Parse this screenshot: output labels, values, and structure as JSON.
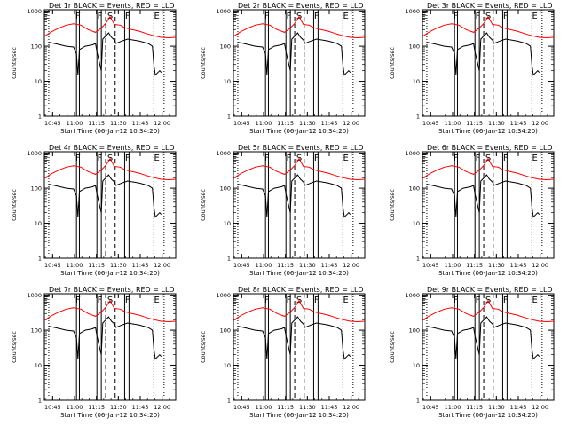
{
  "figure": {
    "panels": [
      {
        "title": "Det 1r  BLACK = Events, RED = LLD",
        "xlabel": "Start Time (06-Jan-12 10:34:20)",
        "ylabel": "Counts/sec"
      },
      {
        "title": "Det 2r  BLACK = Events, RED = LLD",
        "xlabel": "Start Time (06-Jan-12 10:34:20)",
        "ylabel": "Counts/sec"
      },
      {
        "title": "Det 3r  BLACK = Events, RED = LLD",
        "xlabel": "Start Time (06-Jan-12 10:34:20)",
        "ylabel": "Counts/sec"
      },
      {
        "title": "Det 4r  BLACK = Events, RED = LLD",
        "xlabel": "Start Time (06-Jan-12 10:34:20)",
        "ylabel": "Counts/sec"
      },
      {
        "title": "Det 5r  BLACK = Events, RED = LLD",
        "xlabel": "Start Time (06-Jan-12 10:34:20)",
        "ylabel": "Counts/sec"
      },
      {
        "title": "Det 6r  BLACK = Events, RED = LLD",
        "xlabel": "Start Time (06-Jan-12 10:34:20)",
        "ylabel": "Counts/sec"
      },
      {
        "title": "Det 7r  BLACK = Events, RED = LLD",
        "xlabel": "Start Time (06-Jan-12 10:34:20)",
        "ylabel": "Counts/sec"
      },
      {
        "title": "Det 8r  BLACK = Events, RED = LLD",
        "xlabel": "Start Time (06-Jan-12 10:34:20)",
        "ylabel": "Counts/sec"
      },
      {
        "title": "Det 9r  BLACK = Events, RED = LLD",
        "xlabel": "Start Time (06-Jan-12 10:34:20)",
        "ylabel": "Counts/sec"
      }
    ]
  },
  "chart_data": {
    "type": "line",
    "layout": "3x3 grid",
    "x_units": "minutes after 10:34:20",
    "xlim": [
      5,
      95
    ],
    "yscale": "log",
    "ylim": [
      1,
      1100
    ],
    "yticks": [
      1,
      10,
      100,
      1000
    ],
    "ytick_labels": [
      "1",
      "10",
      "100",
      "1000"
    ],
    "xticks": [
      10.67,
      25.67,
      40.67,
      55.67,
      70.67,
      85.67
    ],
    "xtick_labels": [
      "10:45",
      "11:00",
      "11:15",
      "11:30",
      "11:45",
      "12:00"
    ],
    "grid": false,
    "line_colors": {
      "events": "#000000",
      "lld": "#ff0000"
    },
    "annotations": [
      {
        "text": "E",
        "x": 6
      },
      {
        "text": "F",
        "x": 28
      },
      {
        "text": "F",
        "x": 43
      },
      {
        "text": "S",
        "x": 50
      },
      {
        "text": "F",
        "x": 62
      },
      {
        "text": "E",
        "x": 82
      }
    ],
    "vertical_lines": [
      {
        "x": 8,
        "style": "dotted"
      },
      {
        "x": 27,
        "style": "solid"
      },
      {
        "x": 29,
        "style": "solid"
      },
      {
        "x": 41,
        "style": "solid"
      },
      {
        "x": 44,
        "style": "solid"
      },
      {
        "x": 47,
        "style": "dashed"
      },
      {
        "x": 53.5,
        "style": "dashed"
      },
      {
        "x": 60,
        "style": "solid"
      },
      {
        "x": 63,
        "style": "solid"
      },
      {
        "x": 80,
        "style": "dotted"
      },
      {
        "x": 87,
        "style": "dotted"
      }
    ],
    "series": [
      {
        "name": "LLD",
        "x": [
          5,
          10,
          15,
          20,
          25,
          30,
          35,
          40,
          44,
          47,
          50,
          53,
          57,
          60,
          65,
          70,
          75,
          80,
          85,
          90,
          95
        ],
        "values": [
          190,
          260,
          330,
          400,
          440,
          400,
          300,
          250,
          330,
          450,
          700,
          420,
          400,
          340,
          300,
          270,
          230,
          200,
          180,
          175,
          180
        ]
      },
      {
        "name": "Events",
        "x": [
          8,
          12,
          20,
          25,
          27,
          28,
          29,
          33,
          38,
          40,
          41,
          44,
          45,
          49,
          51,
          53,
          54,
          58,
          62,
          66,
          70,
          76,
          79,
          80,
          81,
          84,
          85
        ],
        "values": [
          130,
          120,
          100,
          95,
          60,
          15,
          80,
          100,
          110,
          120,
          70,
          20,
          160,
          240,
          180,
          150,
          120,
          140,
          160,
          150,
          140,
          120,
          100,
          30,
          15,
          20,
          18
        ]
      }
    ]
  }
}
